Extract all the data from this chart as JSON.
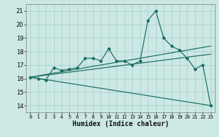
{
  "xlabel": "Humidex (Indice chaleur)",
  "bg_color": "#cce8e4",
  "grid_color": "#aacfcb",
  "line_color": "#1a6e62",
  "xlim": [
    -0.5,
    23.5
  ],
  "ylim": [
    13.5,
    21.5
  ],
  "yticks": [
    14,
    15,
    16,
    17,
    18,
    19,
    20,
    21
  ],
  "xticks": [
    0,
    1,
    2,
    3,
    4,
    5,
    6,
    7,
    8,
    9,
    10,
    11,
    12,
    13,
    14,
    15,
    16,
    17,
    18,
    19,
    20,
    21,
    22,
    23
  ],
  "main_x": [
    0,
    1,
    2,
    3,
    4,
    5,
    6,
    7,
    8,
    9,
    10,
    11,
    12,
    13,
    14,
    15,
    16,
    17,
    18,
    19,
    20,
    21,
    22,
    23
  ],
  "main_y": [
    16.1,
    16.0,
    15.9,
    16.8,
    16.6,
    16.7,
    16.8,
    17.5,
    17.5,
    17.3,
    18.2,
    17.3,
    17.3,
    17.0,
    17.3,
    20.3,
    21.0,
    19.0,
    18.4,
    18.1,
    17.5,
    16.7,
    17.0,
    14.0
  ],
  "trend1_x": [
    0,
    23
  ],
  "trend1_y": [
    16.1,
    18.4
  ],
  "trend2_x": [
    0,
    23
  ],
  "trend2_y": [
    16.1,
    17.8
  ],
  "trend3_x": [
    0,
    23
  ],
  "trend3_y": [
    16.1,
    14.0
  ]
}
